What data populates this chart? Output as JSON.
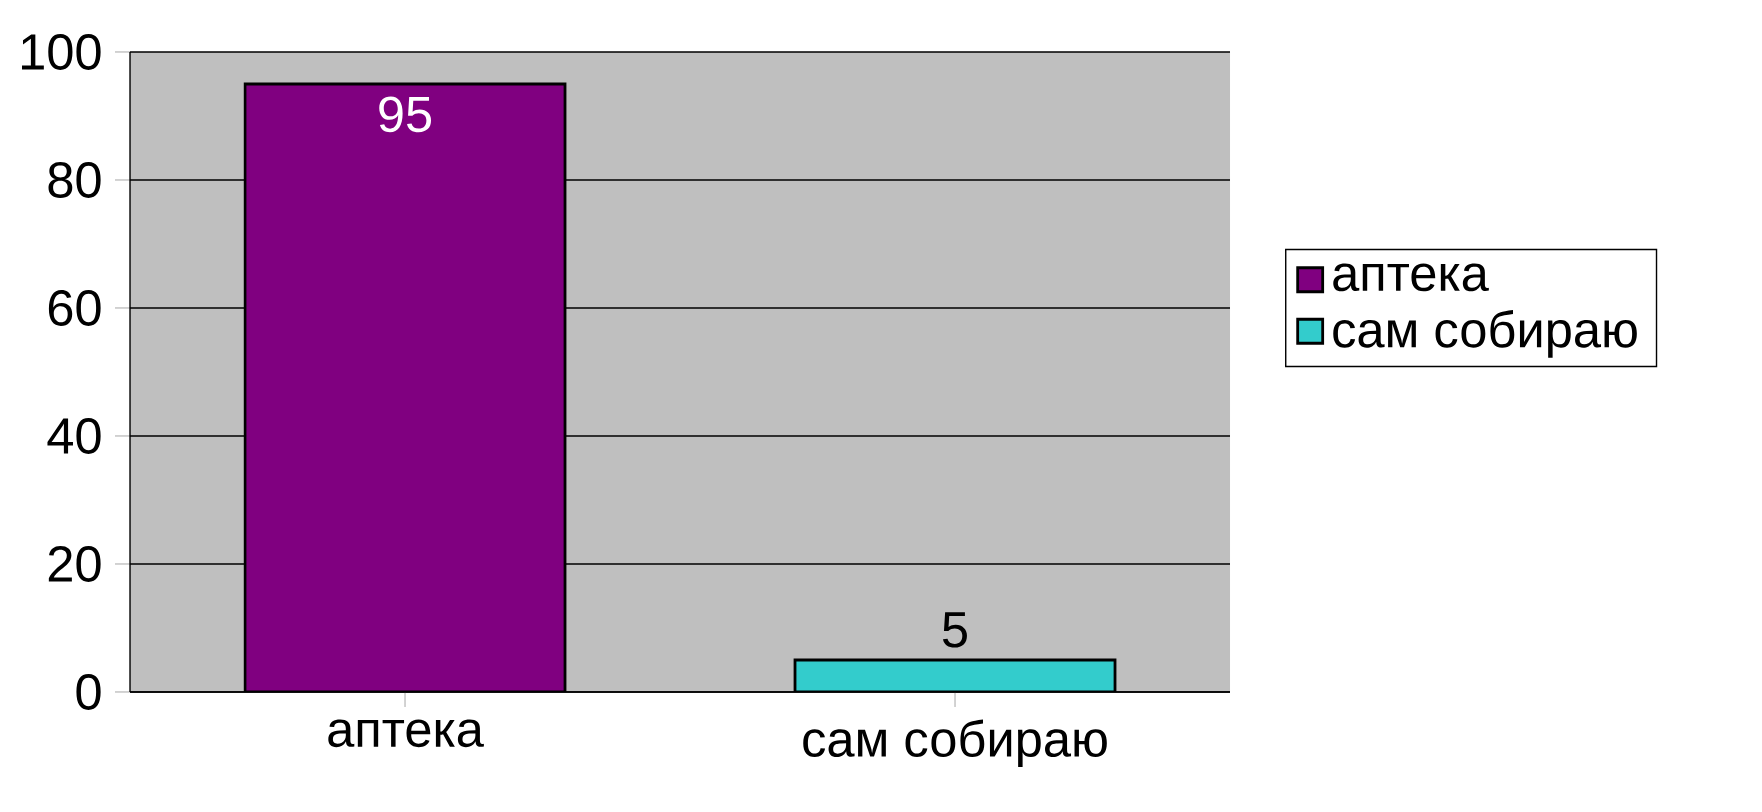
{
  "chart_data": {
    "type": "bar",
    "categories": [
      "аптека",
      "сам собираю"
    ],
    "series": [
      {
        "name": "аптека",
        "color": "#800080",
        "values": [
          95,
          null
        ]
      },
      {
        "name": "сам собираю",
        "color": "#33cccc",
        "values": [
          null,
          5
        ]
      }
    ],
    "ylim": [
      0,
      100
    ],
    "yticks": [
      0,
      20,
      40,
      60,
      80,
      100
    ],
    "grid": "y",
    "legend": "right",
    "data_labels": true
  }
}
